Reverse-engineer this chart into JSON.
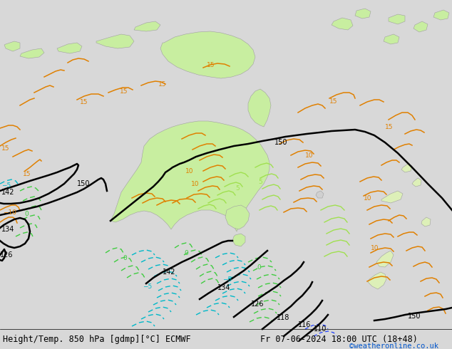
{
  "title_left": "Height/Temp. 850 hPa [gdmp][°C] ECMWF",
  "title_right": "Fr 07-06-2024 18:00 UTC (18+48)",
  "copyright": "©weatheronline.co.uk",
  "bg_color": "#d8d8d8",
  "map_bg": "#d8d8d8",
  "land_green": "#c8eea0",
  "land_light_green": "#ddf0b8",
  "contour_black": "#000000",
  "contour_orange": "#e08000",
  "contour_green": "#40cc40",
  "contour_lgreen": "#a0e050",
  "contour_cyan": "#00b8c8",
  "contour_blue": "#2040ff",
  "font_size_title": 8.5,
  "font_size_copy": 7.5,
  "figsize": [
    6.34,
    4.9
  ],
  "dpi": 100
}
